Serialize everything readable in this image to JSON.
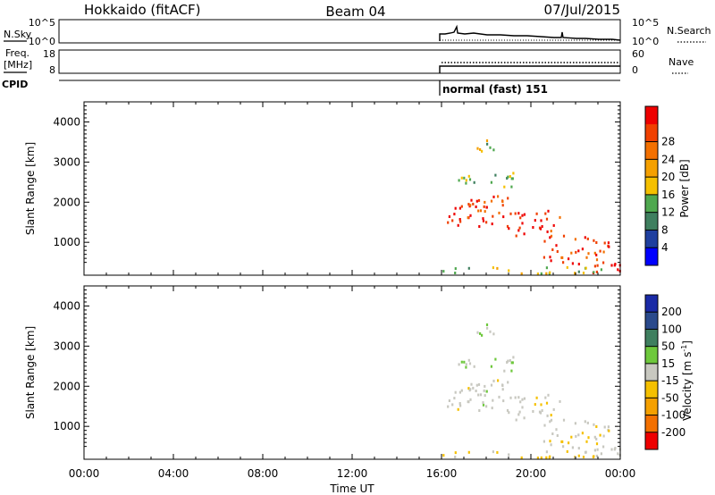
{
  "header": {
    "station": "Hokkaido (fitACF)",
    "beam": "Beam 04",
    "date": "07/Jul/2015"
  },
  "noise_panel": {
    "left_label": "N.Sky",
    "right_label": "N.Search",
    "left_ticks": [
      "10^5",
      "10^0"
    ],
    "right_ticks": [
      "10^5",
      "10^0"
    ]
  },
  "freq_panel": {
    "left_label_1": "Freq.",
    "left_label_2": "[MHz]",
    "right_label": "Nave",
    "left_ticks": [
      "18",
      "8"
    ],
    "right_ticks": [
      "60",
      "0"
    ]
  },
  "cpid_panel": {
    "label": "CPID",
    "program": "normal (fast) 151"
  },
  "power_panel": {
    "ylabel": "Slant Range [km]",
    "yticks": [
      "1000",
      "2000",
      "3000",
      "4000"
    ],
    "colorbar_label": "Power [dB]",
    "colorbar_ticks": [
      "4",
      "8",
      "12",
      "16",
      "20",
      "24",
      "28"
    ],
    "colors": [
      "#0000ff",
      "#1f3f9f",
      "#3f7f5f",
      "#4fa84f",
      "#f5c000",
      "#f5a000",
      "#f37000",
      "#f04000",
      "#ee0000"
    ]
  },
  "velocity_panel": {
    "ylabel": "Slant Range [km]",
    "yticks": [
      "1000",
      "2000",
      "3000",
      "4000"
    ],
    "colorbar_label": "Velocity [m s",
    "colorbar_label_sup": "-1",
    "colorbar_ticks": [
      "200",
      "100",
      "50",
      "15",
      "-15",
      "-50",
      "-100",
      "-200"
    ],
    "colors": [
      "#1a2aa6",
      "#2a4a8c",
      "#3f7f5f",
      "#6ec83c",
      "#c8c8c0",
      "#f5c000",
      "#f5a000",
      "#f37000",
      "#ee0000"
    ]
  },
  "xaxis": {
    "label": "Time UT",
    "ticks": [
      "00:00",
      "04:00",
      "08:00",
      "12:00",
      "16:00",
      "20:00",
      "00:00"
    ]
  },
  "chart_data": {
    "type": "heatmap",
    "x_range_hours": [
      0,
      24
    ],
    "y_range_km": [
      180,
      4500
    ],
    "data_start_hour": 16,
    "power_dB_range": [
      0,
      32
    ],
    "velocity_range": [
      -250,
      250
    ],
    "bands": [
      {
        "x": [
          16.0,
          18.8
        ],
        "y": [
          1300,
          1950
        ],
        "power": 28,
        "velocity": 0
      },
      {
        "x": [
          17.0,
          19.5
        ],
        "y": [
          1850,
          2150
        ],
        "power": 26,
        "velocity": 0
      },
      {
        "x": [
          18.8,
          21.5
        ],
        "y": [
          1100,
          1750
        ],
        "power": 28,
        "velocity": -10
      },
      {
        "x": [
          20.5,
          23.5
        ],
        "y": [
          400,
          1100
        ],
        "power": 28,
        "velocity": -15
      },
      {
        "x": [
          22.5,
          24.0
        ],
        "y": [
          200,
          600
        ],
        "power": 30,
        "velocity": -20
      },
      {
        "x": [
          16.0,
          24.0
        ],
        "y": [
          180,
          350
        ],
        "power": 14,
        "velocity": -40
      },
      {
        "x": [
          17.3,
          18.7
        ],
        "y": [
          3200,
          3500
        ],
        "power": 14,
        "velocity": 20
      },
      {
        "x": [
          16.5,
          19.2
        ],
        "y": [
          2300,
          2700
        ],
        "power": 12,
        "velocity": 30
      }
    ]
  }
}
